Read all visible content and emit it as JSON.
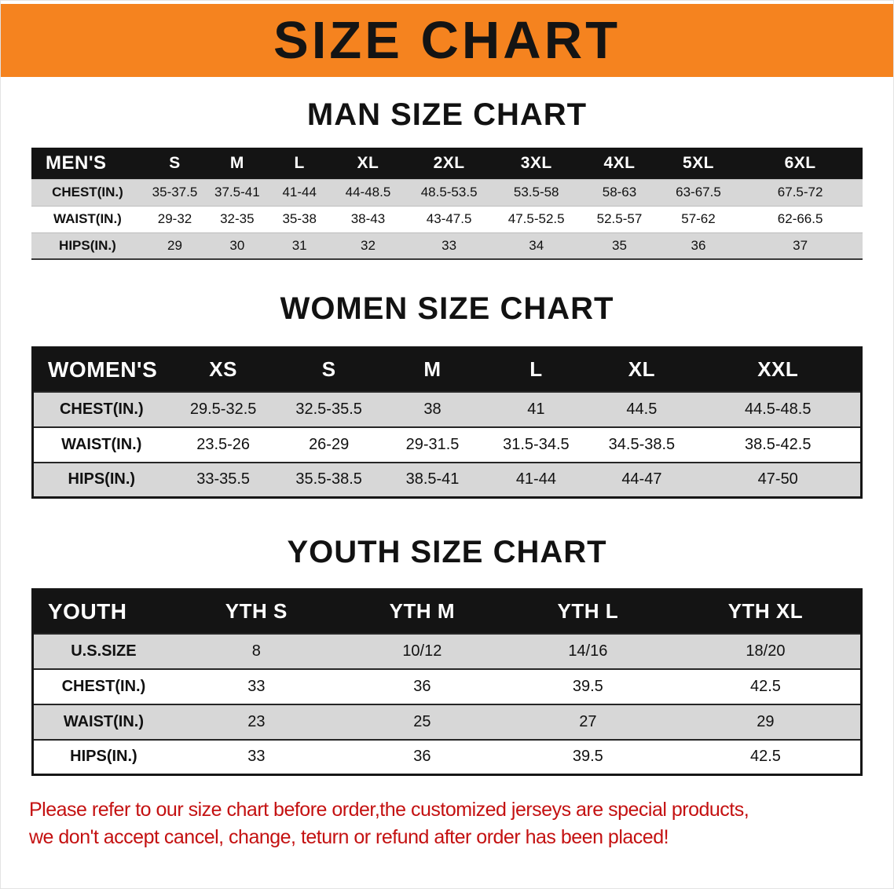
{
  "banner": {
    "title": "SIZE CHART"
  },
  "sections": [
    {
      "id": "men",
      "heading": "MAN SIZE CHART",
      "header": [
        "MEN'S",
        "S",
        "M",
        "L",
        "XL",
        "2XL",
        "3XL",
        "4XL",
        "5XL",
        "6XL"
      ],
      "rows": [
        [
          "CHEST(IN.)",
          "35-37.5",
          "37.5-41",
          "41-44",
          "44-48.5",
          "48.5-53.5",
          "53.5-58",
          "58-63",
          "63-67.5",
          "67.5-72"
        ],
        [
          "WAIST(IN.)",
          "29-32",
          "32-35",
          "35-38",
          "38-43",
          "43-47.5",
          "47.5-52.5",
          "52.5-57",
          "57-62",
          "62-66.5"
        ],
        [
          "HIPS(IN.)",
          "29",
          "30",
          "31",
          "32",
          "33",
          "34",
          "35",
          "36",
          "37"
        ]
      ]
    },
    {
      "id": "women",
      "heading": "WOMEN SIZE CHART",
      "header": [
        "WOMEN'S",
        "XS",
        "S",
        "M",
        "L",
        "XL",
        "XXL"
      ],
      "rows": [
        [
          "CHEST(IN.)",
          "29.5-32.5",
          "32.5-35.5",
          "38",
          "41",
          "44.5",
          "44.5-48.5"
        ],
        [
          "WAIST(IN.)",
          "23.5-26",
          "26-29",
          "29-31.5",
          "31.5-34.5",
          "34.5-38.5",
          "38.5-42.5"
        ],
        [
          "HIPS(IN.)",
          "33-35.5",
          "35.5-38.5",
          "38.5-41",
          "41-44",
          "44-47",
          "47-50"
        ]
      ]
    },
    {
      "id": "youth",
      "heading": "YOUTH SIZE CHART",
      "header": [
        "YOUTH",
        "YTH S",
        "YTH M",
        "YTH L",
        "YTH XL"
      ],
      "rows": [
        [
          "U.S.SIZE",
          "8",
          "10/12",
          "14/16",
          "18/20"
        ],
        [
          "CHEST(IN.)",
          "33",
          "36",
          "39.5",
          "42.5"
        ],
        [
          "WAIST(IN.)",
          "23",
          "25",
          "27",
          "29"
        ],
        [
          "HIPS(IN.)",
          "33",
          "36",
          "39.5",
          "42.5"
        ]
      ]
    }
  ],
  "disclaimer": {
    "line1": "Please refer to our size chart before order,the customized jerseys are special products,",
    "line2": "we don't accept cancel, change, teturn or refund after order has been placed!"
  },
  "colors": {
    "banner-orange": "#f5831f",
    "header-black": "#141414",
    "row-gray": "#d7d7d7",
    "disclaimer-red": "#c41111"
  }
}
